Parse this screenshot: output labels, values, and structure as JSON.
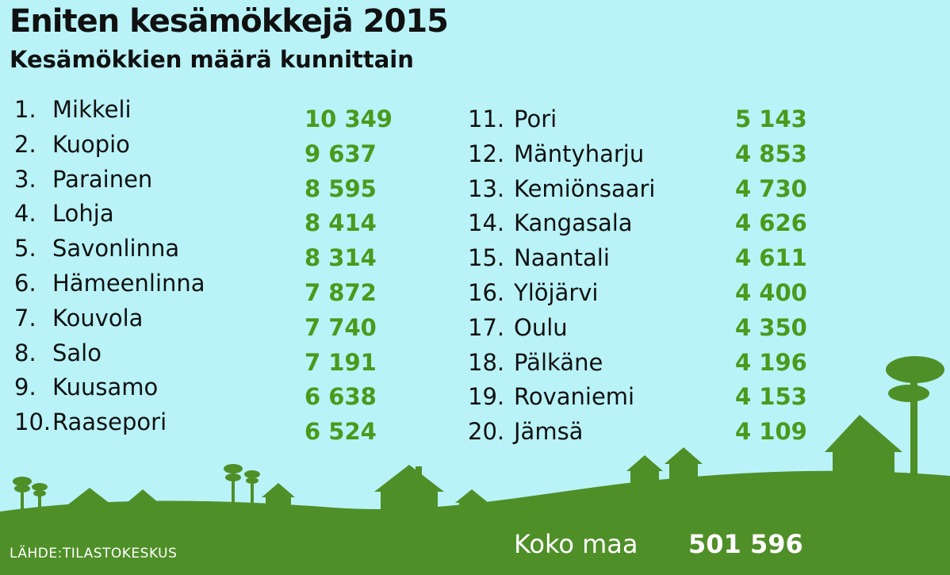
{
  "title": "Eniten kesämökkejä 2015",
  "subtitle": "Kesämökkien määrä kunnittain",
  "source": "LÄHDE:TILASTOKESKUS",
  "total": {
    "label": "Koko maa",
    "value": "501 596"
  },
  "colors": {
    "background": "#b9f3f7",
    "value_green": "#4a9a1c",
    "landscape_green": "#4f8f28",
    "total_text": "#ffffff"
  },
  "chart_data": {
    "type": "table",
    "title": "Eniten kesämökkejä 2015",
    "subtitle": "Kesämökkien määrä kunnittain",
    "rows": [
      {
        "rank": "1.",
        "name": "Mikkeli",
        "value": 10349,
        "label": "10 349"
      },
      {
        "rank": "2.",
        "name": "Kuopio",
        "value": 9637,
        "label": "9 637"
      },
      {
        "rank": "3.",
        "name": "Parainen",
        "value": 8595,
        "label": "8 595"
      },
      {
        "rank": "4.",
        "name": "Lohja",
        "value": 8414,
        "label": "8 414"
      },
      {
        "rank": "5.",
        "name": "Savonlinna",
        "value": 8314,
        "label": "8 314"
      },
      {
        "rank": "6.",
        "name": "Hämeenlinna",
        "value": 7872,
        "label": "7 872"
      },
      {
        "rank": "7.",
        "name": "Kouvola",
        "value": 7740,
        "label": "7 740"
      },
      {
        "rank": "8.",
        "name": "Salo",
        "value": 7191,
        "label": "7 191"
      },
      {
        "rank": "9.",
        "name": "Kuusamo",
        "value": 6638,
        "label": "6 638"
      },
      {
        "rank": "10.",
        "name": "Raasepori",
        "value": 6524,
        "label": "6 524"
      },
      {
        "rank": "11.",
        "name": "Pori",
        "value": 5143,
        "label": "5 143"
      },
      {
        "rank": "12.",
        "name": "Mäntyharju",
        "value": 4853,
        "label": "4 853"
      },
      {
        "rank": "13.",
        "name": "Kemiönsaari",
        "value": 4730,
        "label": "4 730"
      },
      {
        "rank": "14.",
        "name": "Kangasala",
        "value": 4626,
        "label": "4 626"
      },
      {
        "rank": "15.",
        "name": "Naantali",
        "value": 4611,
        "label": "4 611"
      },
      {
        "rank": "16.",
        "name": "Ylöjärvi",
        "value": 4400,
        "label": "4 400"
      },
      {
        "rank": "17.",
        "name": "Oulu",
        "value": 4350,
        "label": "4 350"
      },
      {
        "rank": "18.",
        "name": "Pälkäne",
        "value": 4196,
        "label": "4 196"
      },
      {
        "rank": "19.",
        "name": "Rovaniemi",
        "value": 4153,
        "label": "4 153"
      },
      {
        "rank": "20.",
        "name": "Jämsä",
        "value": 4109,
        "label": "4 109"
      }
    ]
  }
}
